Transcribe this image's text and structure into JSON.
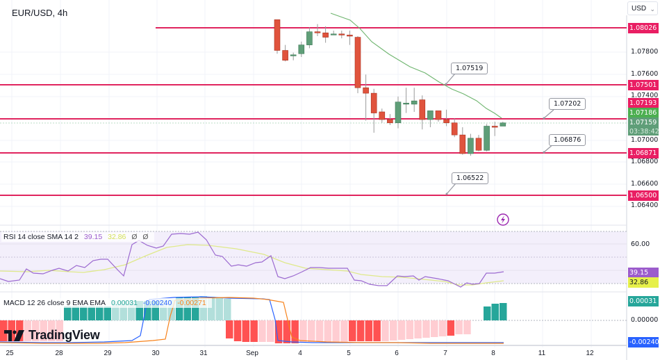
{
  "header": {
    "symbol_title": "EUR/USD, 4h",
    "currency_selector": "USD"
  },
  "branding": {
    "logo_text": "TradingView"
  },
  "price_axis": {
    "labels": [
      "1.07800",
      "1.07600",
      "1.07400",
      "1.07000",
      "1.06800",
      "1.06600",
      "1.06400"
    ],
    "tags": [
      {
        "value": "1.08026",
        "color": "#e91e63"
      },
      {
        "value": "1.07501",
        "color": "#e91e63"
      },
      {
        "value": "1.07193",
        "color": "#e91e63"
      },
      {
        "value": "1.07186",
        "color": "#4caf50"
      },
      {
        "value": "1.07159",
        "color": "#5f9e78"
      },
      {
        "value": "1.06871",
        "color": "#e91e63"
      },
      {
        "value": "1.06500",
        "color": "#e91e63"
      }
    ],
    "countdown": "03:38:42"
  },
  "callouts": [
    "1.07519",
    "1.07202",
    "1.06876",
    "1.06522"
  ],
  "rsi": {
    "legend_label": "RSI 14 close SMA 14 2",
    "rsi_value": "39.15",
    "sma_value": "32.86",
    "extra1": "Ø",
    "extra2": "Ø",
    "axis_label": "60.00",
    "rsi_color": "#9c5ccc",
    "sma_color": "#d7e85c"
  },
  "macd": {
    "legend_label": "MACD 12 26 close 9 EMA EMA",
    "hist_value": "0.00031",
    "macd_value": "-0.00240",
    "signal_value": "-0.00271",
    "axis_zero": "0.00000",
    "hist_color": "#26a69a",
    "macd_color": "#2962ff",
    "signal_color": "#f7821b"
  },
  "time_axis": {
    "labels": [
      "25",
      "28",
      "29",
      "30",
      "31",
      "Sep",
      "4",
      "5",
      "6",
      "7",
      "8",
      "11",
      "12"
    ]
  },
  "chart_data": {
    "type": "candlestick",
    "title": "EUR/USD, 4h",
    "xlabel": "",
    "ylabel": "USD",
    "ylim": [
      1.0632,
      1.0815
    ],
    "x_tick_labels": [
      "25",
      "28",
      "29",
      "30",
      "31",
      "Sep",
      "4",
      "5",
      "6",
      "7",
      "8",
      "11",
      "12"
    ],
    "horizontal_levels": [
      1.08026,
      1.07501,
      1.07193,
      1.06871,
      1.065
    ],
    "callout_levels": [
      1.07519,
      1.07202,
      1.06876,
      1.06522
    ],
    "last_price": 1.07159,
    "ma_last": 1.07186,
    "candles": [
      {
        "o": 1.081,
        "h": 1.081,
        "l": 1.0779,
        "c": 1.0782
      },
      {
        "o": 1.0782,
        "h": 1.0787,
        "l": 1.0772,
        "c": 1.0773
      },
      {
        "o": 1.0777,
        "h": 1.078,
        "l": 1.0773,
        "c": 1.0778
      },
      {
        "o": 1.0779,
        "h": 1.079,
        "l": 1.0776,
        "c": 1.0787
      },
      {
        "o": 1.0787,
        "h": 1.0803,
        "l": 1.0784,
        "c": 1.0799
      },
      {
        "o": 1.0799,
        "h": 1.0806,
        "l": 1.0795,
        "c": 1.0798
      },
      {
        "o": 1.0798,
        "h": 1.0804,
        "l": 1.0789,
        "c": 1.0794
      },
      {
        "o": 1.0797,
        "h": 1.08,
        "l": 1.0796,
        "c": 1.0797
      },
      {
        "o": 1.0797,
        "h": 1.08,
        "l": 1.0793,
        "c": 1.0796
      },
      {
        "o": 1.0796,
        "h": 1.08,
        "l": 1.0787,
        "c": 1.0795
      },
      {
        "o": 1.0794,
        "h": 1.0795,
        "l": 1.0743,
        "c": 1.0748
      },
      {
        "o": 1.0748,
        "h": 1.076,
        "l": 1.0718,
        "c": 1.0743
      },
      {
        "o": 1.0743,
        "h": 1.0747,
        "l": 1.0707,
        "c": 1.0725
      },
      {
        "o": 1.0726,
        "h": 1.0729,
        "l": 1.0716,
        "c": 1.0719
      },
      {
        "o": 1.0719,
        "h": 1.0724,
        "l": 1.0714,
        "c": 1.0716
      },
      {
        "o": 1.0716,
        "h": 1.074,
        "l": 1.0711,
        "c": 1.0735
      },
      {
        "o": 1.0733,
        "h": 1.0748,
        "l": 1.0725,
        "c": 1.0734
      },
      {
        "o": 1.0733,
        "h": 1.0748,
        "l": 1.0726,
        "c": 1.0736
      },
      {
        "o": 1.0737,
        "h": 1.0741,
        "l": 1.071,
        "c": 1.0719
      },
      {
        "o": 1.0719,
        "h": 1.0725,
        "l": 1.0712,
        "c": 1.0727
      },
      {
        "o": 1.0727,
        "h": 1.0727,
        "l": 1.0717,
        "c": 1.0719
      },
      {
        "o": 1.0719,
        "h": 1.0728,
        "l": 1.0713,
        "c": 1.0716
      },
      {
        "o": 1.0716,
        "h": 1.072,
        "l": 1.0703,
        "c": 1.0705
      },
      {
        "o": 1.0705,
        "h": 1.0712,
        "l": 1.0687,
        "c": 1.0688
      },
      {
        "o": 1.0688,
        "h": 1.0706,
        "l": 1.0686,
        "c": 1.0702
      },
      {
        "o": 1.0702,
        "h": 1.0705,
        "l": 1.069,
        "c": 1.0691
      },
      {
        "o": 1.0691,
        "h": 1.0715,
        "l": 1.069,
        "c": 1.0713
      },
      {
        "o": 1.0713,
        "h": 1.0717,
        "l": 1.0704,
        "c": 1.0712
      },
      {
        "o": 1.0713,
        "h": 1.0717,
        "l": 1.0713,
        "c": 1.0716
      }
    ],
    "rsi_series": [
      {
        "name": "RSI 14",
        "last": 39.15
      },
      {
        "name": "SMA 14",
        "last": 32.86
      }
    ],
    "macd_series": [
      {
        "name": "Histogram",
        "last": 0.00031
      },
      {
        "name": "MACD",
        "last": -0.0024
      },
      {
        "name": "Signal",
        "last": -0.00271
      }
    ]
  }
}
